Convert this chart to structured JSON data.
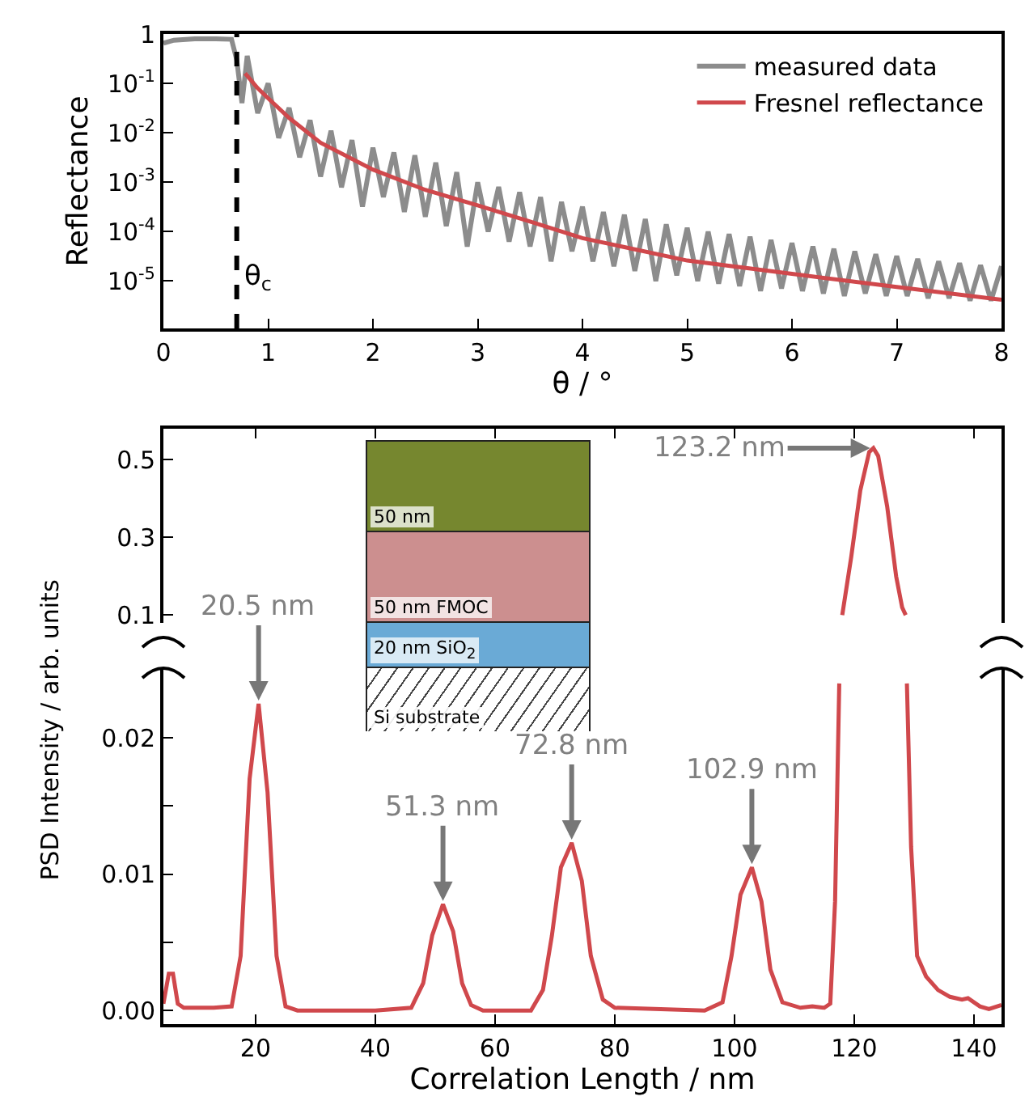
{
  "chart_data": [
    {
      "type": "line",
      "xlabel": "θ / °",
      "ylabel": "Reflectance",
      "log": true,
      "legend": "top right",
      "xlim": [
        0,
        8
      ],
      "xticks": [
        0,
        1,
        2,
        3,
        4,
        5,
        6,
        7,
        8
      ],
      "ylim": [
        1.1e-06,
        1
      ],
      "yticks": [
        1,
        {
          "value": 0.1,
          "label": "10$^{-1}$"
        },
        {
          "value": 0.01,
          "label": "10$^{-2}$"
        },
        {
          "value": 0.001,
          "label": "10$^{-3}$"
        },
        {
          "value": 0.0001,
          "label": "10$^{-4}$"
        },
        {
          "value": 1e-05,
          "label": "10$^{-5}$"
        }
      ],
      "ref_lines": [
        {
          "axis": "x",
          "value": 0.7,
          "label": "θ$_{c}$",
          "color": "#000000",
          "line_style": "dashed"
        }
      ],
      "series": [
        {
          "name": "measured data",
          "color": "#8c8c8c",
          "x": [
            0,
            0.1,
            0.3,
            0.5,
            0.65,
            0.7,
            0.75,
            0.8,
            0.9,
            1.0,
            1.1,
            1.2,
            1.3,
            1.4,
            1.5,
            1.6,
            1.7,
            1.8,
            1.9,
            2.0,
            2.1,
            2.2,
            2.3,
            2.4,
            2.5,
            2.6,
            2.7,
            2.8,
            2.9,
            3.0,
            3.1,
            3.2,
            3.3,
            3.4,
            3.5,
            3.6,
            3.7,
            3.8,
            3.9,
            4.0,
            4.1,
            4.2,
            4.3,
            4.4,
            4.5,
            4.6,
            4.7,
            4.8,
            4.9,
            5.0,
            5.1,
            5.2,
            5.3,
            5.4,
            5.5,
            5.6,
            5.7,
            5.8,
            5.9,
            6.0,
            6.1,
            6.2,
            6.3,
            6.4,
            6.5,
            6.6,
            6.7,
            6.8,
            6.9,
            7.0,
            7.1,
            7.2,
            7.3,
            7.4,
            7.5,
            7.6,
            7.7,
            7.8,
            7.9,
            8.0
          ],
          "values": [
            0.65,
            0.75,
            0.8,
            0.8,
            0.78,
            0.3,
            0.04,
            0.36,
            0.025,
            0.1,
            0.0079,
            0.032,
            0.0032,
            0.018,
            0.0013,
            0.011,
            0.00079,
            0.0071,
            0.00032,
            0.005,
            0.0005,
            0.004,
            0.00025,
            0.0035,
            0.0002,
            0.0025,
            0.00013,
            0.0016,
            5e-05,
            0.001,
            0.0001,
            0.0008,
            6.3e-05,
            0.00063,
            5e-05,
            0.0005,
            2.5e-05,
            0.0004,
            4e-05,
            0.00032,
            2.5e-05,
            0.00025,
            2e-05,
            0.00022,
            1.6e-05,
            0.00018,
            1e-05,
            0.00014,
            1.3e-05,
            0.00012,
            1e-05,
            0.0001,
            8.9e-06,
            8.9e-05,
            7.9e-06,
            7.9e-05,
            6.3e-06,
            6.8e-05,
            7.1e-06,
            5.9e-05,
            6.3e-06,
            5e-05,
            5.6e-06,
            4.5e-05,
            5e-06,
            4e-05,
            5.6e-06,
            3.5e-05,
            5e-06,
            3.2e-05,
            5e-06,
            2.8e-05,
            4.5e-06,
            2.5e-05,
            4.5e-06,
            2.3e-05,
            4e-06,
            2.1e-05,
            4e-06,
            2e-05
          ]
        },
        {
          "name": "Fresnel reflectance",
          "color": "#d0484c",
          "x": [
            0.78,
            0.9,
            1.0,
            1.2,
            1.5,
            2,
            2.5,
            3,
            3.5,
            4,
            5,
            6,
            7,
            8
          ],
          "values": [
            0.16,
            0.08,
            0.05,
            0.02,
            0.0063,
            0.0018,
            0.0007,
            0.00034,
            0.00016,
            7.4e-05,
            2.6e-05,
            1.4e-05,
            7.6e-06,
            4.2e-06
          ]
        }
      ]
    },
    {
      "type": "line",
      "tick_labels": "y",
      "xlim": [
        4.6,
        144.6
      ],
      "xticks": [
        20,
        40,
        60,
        80,
        100,
        120,
        140
      ],
      "ylim": [
        0.08,
        0.58
      ],
      "yticks": [
        0.1,
        0.3,
        0.5
      ],
      "annotations": [
        {
          "text": "123.2 nm",
          "x": 123.2,
          "y": 0.53
        },
        "50 nm",
        "50 nm FMOC",
        "20 nm SiO$_{2}$",
        "Si substrate"
      ],
      "series": [
        {
          "color": "#d0484c",
          "x": [
            118,
            119.5,
            121,
            122.5,
            123.2,
            124,
            125.5,
            127,
            128,
            128.6
          ],
          "values": [
            0.1,
            0.25,
            0.42,
            0.52,
            0.53,
            0.51,
            0.38,
            0.2,
            0.12,
            0.1
          ]
        }
      ]
    },
    {
      "type": "line",
      "xlabel": "Correlation Length / nm",
      "ylabel": "PSD Intensity / arb. units",
      "xlim": [
        4.6,
        144.6
      ],
      "xticks": [
        20,
        40,
        60,
        80,
        100,
        120,
        140
      ],
      "ylim": [
        -0.001,
        0.025
      ],
      "yticks": [
        {
          "value": 0,
          "label": "0.00"
        },
        {
          "value": 0.005,
          "label": null
        },
        0.01,
        {
          "value": 0.015,
          "label": null
        },
        0.02
      ],
      "annotations": [
        {
          "text": "20.5 nm",
          "x": 20.5,
          "y": 0.0225
        },
        {
          "text": "51.3 nm",
          "x": 51.3,
          "y": 0.0078
        },
        {
          "text": "72.8 nm",
          "x": 72.8,
          "y": 0.0123
        },
        {
          "text": "102.9 nm",
          "x": 102.9,
          "y": 0.0105
        }
      ],
      "series": [
        {
          "color": "#d0484c",
          "x": [
            4.6,
            5.5,
            6.2,
            7,
            8,
            10,
            13,
            16,
            17.5,
            19,
            20.5,
            22,
            23.5,
            25,
            27,
            40,
            46,
            48,
            49.5,
            51.3,
            53,
            54.5,
            56,
            58,
            66,
            68,
            69.5,
            71,
            72.8,
            74.5,
            76,
            78,
            80,
            95,
            98,
            99.5,
            101,
            102.9,
            104.5,
            106,
            108,
            111,
            113,
            115,
            116,
            116.8,
            117.5,
            123,
            128.8,
            129.5,
            130.5,
            132,
            134,
            136,
            138,
            139,
            141,
            142.5,
            144.6
          ],
          "values": [
            0.0005,
            0.0027,
            0.0027,
            0.0005,
            0.0002,
            0.0002,
            0.0002,
            0.0003,
            0.004,
            0.017,
            0.0225,
            0.016,
            0.004,
            0.0003,
            0,
            0,
            0.0002,
            0.002,
            0.0055,
            0.0078,
            0.0058,
            0.002,
            0.0004,
            0,
            0,
            0.0015,
            0.0055,
            0.0105,
            0.0123,
            0.0095,
            0.004,
            0.0008,
            0.0002,
            0,
            0.0006,
            0.004,
            0.0085,
            0.0105,
            0.008,
            0.003,
            0.0006,
            0.0002,
            0.0003,
            0.0002,
            0.0005,
            0.008,
            0.024,
            null,
            0.024,
            0.012,
            0.004,
            0.0025,
            0.0015,
            0.001,
            0.0008,
            0.0009,
            0.0003,
            0.0001,
            0.0004
          ]
        }
      ]
    }
  ]
}
